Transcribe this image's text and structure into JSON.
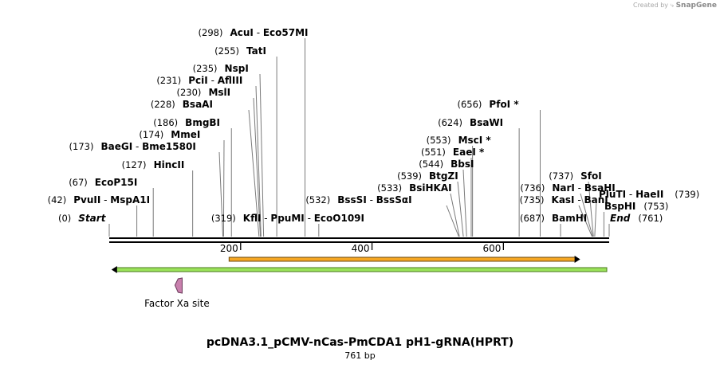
{
  "credit": {
    "prefix": "Created by",
    "brand": "SnapGene"
  },
  "sequence": {
    "name": "pcDNA3.1_pCMV-nCas-PmCDA1 pH1-gRNA(HPRT)",
    "length_label": "761 bp",
    "length": 761
  },
  "ruler": {
    "ticks": [
      200,
      400,
      600
    ]
  },
  "sites": [
    {
      "pos": 0,
      "pos_label": "(0)",
      "names": [
        "Start"
      ],
      "italic": true
    },
    {
      "pos": 42,
      "pos_label": "(42)",
      "names": [
        "PvuII",
        "MspA1I"
      ]
    },
    {
      "pos": 67,
      "pos_label": "(67)",
      "names": [
        "EcoP15I"
      ]
    },
    {
      "pos": 127,
      "pos_label": "(127)",
      "names": [
        "HincII"
      ]
    },
    {
      "pos": 173,
      "pos_label": "(173)",
      "names": [
        "BaeGI",
        "Bme1580I"
      ]
    },
    {
      "pos": 174,
      "pos_label": "(174)",
      "names": [
        "MmeI"
      ]
    },
    {
      "pos": 186,
      "pos_label": "(186)",
      "names": [
        "BmgBI"
      ]
    },
    {
      "pos": 228,
      "pos_label": "(228)",
      "names": [
        "BsaAI"
      ]
    },
    {
      "pos": 230,
      "pos_label": "(230)",
      "names": [
        "MslI"
      ]
    },
    {
      "pos": 231,
      "pos_label": "(231)",
      "names": [
        "PciI",
        "AflIII"
      ]
    },
    {
      "pos": 235,
      "pos_label": "(235)",
      "names": [
        "NspI"
      ]
    },
    {
      "pos": 255,
      "pos_label": "(255)",
      "names": [
        "TatI"
      ]
    },
    {
      "pos": 298,
      "pos_label": "(298)",
      "names": [
        "AcuI",
        "Eco57MI"
      ]
    },
    {
      "pos": 319,
      "pos_label": "(319)",
      "names": [
        "KflI",
        "PpuMI",
        "EcoO109I"
      ]
    },
    {
      "pos": 532,
      "pos_label": "(532)",
      "names": [
        "BssSI",
        "BssSαI"
      ]
    },
    {
      "pos": 533,
      "pos_label": "(533)",
      "names": [
        "BsiHKAI"
      ]
    },
    {
      "pos": 539,
      "pos_label": "(539)",
      "names": [
        "BtgZI"
      ]
    },
    {
      "pos": 544,
      "pos_label": "(544)",
      "names": [
        "BbsI"
      ]
    },
    {
      "pos": 551,
      "pos_label": "(551)",
      "names": [
        "EaeI *"
      ]
    },
    {
      "pos": 553,
      "pos_label": "(553)",
      "names": [
        "MscI *"
      ]
    },
    {
      "pos": 624,
      "pos_label": "(624)",
      "names": [
        "BsaWI"
      ]
    },
    {
      "pos": 656,
      "pos_label": "(656)",
      "names": [
        "PfoI *"
      ]
    },
    {
      "pos": 687,
      "pos_label": "(687)",
      "names": [
        "BamHI"
      ]
    },
    {
      "pos": 735,
      "pos_label": "(735)",
      "names": [
        "KasI",
        "BanI"
      ]
    },
    {
      "pos": 736,
      "pos_label": "(736)",
      "names": [
        "NarI",
        "BsaHI"
      ]
    },
    {
      "pos": 737,
      "pos_label": "(737)",
      "names": [
        "SfoI"
      ]
    },
    {
      "pos": 739,
      "pos_label": "(739)",
      "names": [
        "PluTI",
        "HaeII"
      ]
    },
    {
      "pos": 753,
      "pos_label": "(753)",
      "names": [
        "BspHI"
      ]
    },
    {
      "pos": 761,
      "pos_label": "(761)",
      "names": [
        "End"
      ],
      "italic": true
    }
  ],
  "features": [
    {
      "name": "orange-arrow",
      "start": 180,
      "end": 712,
      "direction": "forward",
      "color": "#f5a623"
    },
    {
      "name": "green-arrow",
      "start": 1,
      "end": 761,
      "direction": "reverse",
      "color": "#9be35a"
    },
    {
      "name": "Factor Xa site",
      "start": 100,
      "end": 111,
      "direction": "reverse",
      "color": "#c880ad"
    }
  ]
}
